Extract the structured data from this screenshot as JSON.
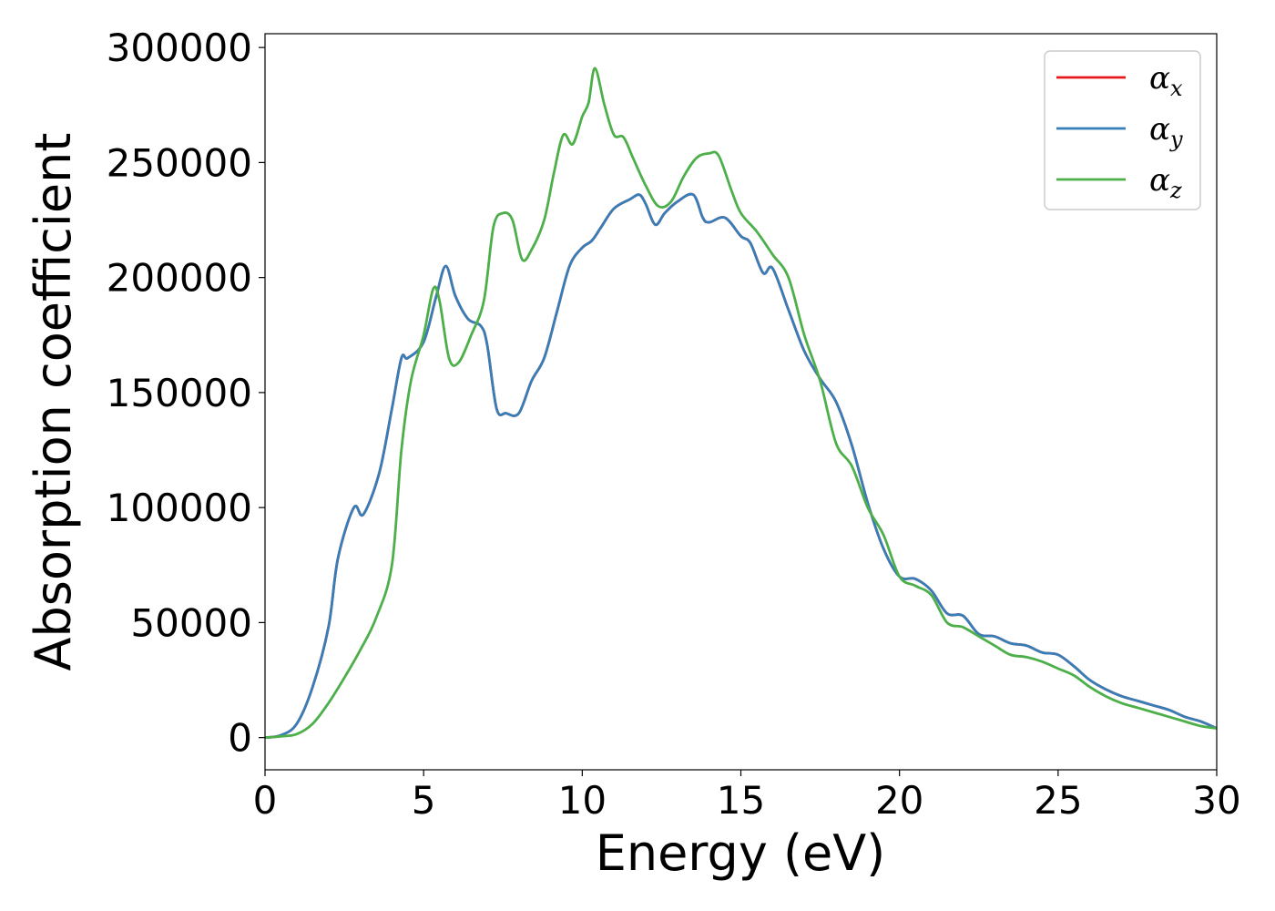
{
  "chart_data": {
    "type": "line",
    "title": "",
    "xlabel": "Energy (eV)",
    "ylabel": "Absorption coefficient",
    "xlim": [
      0,
      30
    ],
    "ylim": [
      -14000,
      306000
    ],
    "xticks": [
      0,
      5,
      10,
      15,
      20,
      25,
      30
    ],
    "yticks": [
      0,
      50000,
      100000,
      150000,
      200000,
      250000,
      300000
    ],
    "grid": false,
    "legend_position": "top-right",
    "series": [
      {
        "name": "α",
        "subscript": "x",
        "color": "#e41a1c",
        "x": [
          0,
          0.5,
          1.0,
          1.5,
          2.0,
          2.3,
          2.8,
          3.1,
          3.6,
          4.0,
          4.3,
          4.5,
          5.0,
          5.4,
          5.7,
          6.0,
          6.4,
          6.8,
          7.0,
          7.3,
          7.6,
          8.0,
          8.4,
          8.8,
          9.2,
          9.6,
          10.0,
          10.3,
          10.6,
          11.0,
          11.5,
          11.8,
          12.0,
          12.3,
          12.6,
          13.0,
          13.5,
          13.8,
          14.0,
          14.5,
          15.0,
          15.3,
          15.7,
          16.0,
          16.5,
          17.0,
          17.5,
          18.0,
          18.5,
          19.0,
          19.5,
          20.0,
          20.5,
          21.0,
          21.5,
          22.0,
          22.5,
          23.0,
          23.5,
          24.0,
          24.5,
          25.0,
          25.5,
          26.0,
          26.5,
          27.0,
          27.5,
          28.0,
          28.5,
          29.0,
          29.5,
          30.0
        ],
        "values": [
          0,
          1000,
          6000,
          22000,
          48000,
          78000,
          100000,
          97000,
          115000,
          143000,
          165000,
          165000,
          172000,
          192000,
          205000,
          192000,
          182000,
          179000,
          171000,
          143000,
          141000,
          141000,
          155000,
          165000,
          185000,
          205000,
          213000,
          216000,
          222000,
          230000,
          234000,
          236000,
          232000,
          223000,
          228000,
          233000,
          236000,
          226000,
          224000,
          226000,
          218000,
          215000,
          202000,
          204000,
          186000,
          168000,
          156000,
          146000,
          127000,
          102000,
          82000,
          70000,
          69000,
          64000,
          54000,
          53000,
          45000,
          44000,
          41000,
          40000,
          37000,
          36000,
          31000,
          25000,
          21000,
          18000,
          16000,
          14000,
          12000,
          9000,
          7000,
          4000
        ]
      },
      {
        "name": "α",
        "subscript": "y",
        "color": "#377eb8",
        "x": [
          0,
          0.5,
          1.0,
          1.5,
          2.0,
          2.3,
          2.8,
          3.1,
          3.6,
          4.0,
          4.3,
          4.5,
          5.0,
          5.4,
          5.7,
          6.0,
          6.4,
          6.8,
          7.0,
          7.3,
          7.6,
          8.0,
          8.4,
          8.8,
          9.2,
          9.6,
          10.0,
          10.3,
          10.6,
          11.0,
          11.5,
          11.8,
          12.0,
          12.3,
          12.6,
          13.0,
          13.5,
          13.8,
          14.0,
          14.5,
          15.0,
          15.3,
          15.7,
          16.0,
          16.5,
          17.0,
          17.5,
          18.0,
          18.5,
          19.0,
          19.5,
          20.0,
          20.5,
          21.0,
          21.5,
          22.0,
          22.5,
          23.0,
          23.5,
          24.0,
          24.5,
          25.0,
          25.5,
          26.0,
          26.5,
          27.0,
          27.5,
          28.0,
          28.5,
          29.0,
          29.5,
          30.0
        ],
        "values": [
          0,
          1000,
          6000,
          22000,
          48000,
          78000,
          100000,
          97000,
          115000,
          143000,
          165000,
          165000,
          172000,
          192000,
          205000,
          192000,
          182000,
          179000,
          171000,
          143000,
          141000,
          141000,
          155000,
          165000,
          185000,
          205000,
          213000,
          216000,
          222000,
          230000,
          234000,
          236000,
          232000,
          223000,
          228000,
          233000,
          236000,
          226000,
          224000,
          226000,
          218000,
          215000,
          202000,
          204000,
          186000,
          168000,
          156000,
          146000,
          127000,
          102000,
          82000,
          70000,
          69000,
          64000,
          54000,
          53000,
          45000,
          44000,
          41000,
          40000,
          37000,
          36000,
          31000,
          25000,
          21000,
          18000,
          16000,
          14000,
          12000,
          9000,
          7000,
          4000
        ]
      },
      {
        "name": "α",
        "subscript": "z",
        "color": "#4daf4a",
        "x": [
          0,
          0.5,
          1.0,
          1.5,
          2.0,
          2.5,
          3.0,
          3.5,
          4.0,
          4.3,
          4.6,
          5.0,
          5.3,
          5.5,
          5.8,
          6.1,
          6.5,
          6.9,
          7.2,
          7.5,
          7.8,
          8.1,
          8.4,
          8.8,
          9.1,
          9.4,
          9.7,
          10.0,
          10.2,
          10.4,
          10.7,
          11.0,
          11.3,
          11.6,
          12.0,
          12.4,
          12.8,
          13.2,
          13.6,
          14.0,
          14.3,
          14.7,
          15.0,
          15.5,
          16.0,
          16.5,
          17.0,
          17.5,
          18.0,
          18.5,
          19.0,
          19.5,
          20.0,
          20.5,
          21.0,
          21.5,
          22.0,
          22.5,
          23.0,
          23.5,
          24.0,
          24.5,
          25.0,
          25.5,
          26.0,
          26.5,
          27.0,
          27.5,
          28.0,
          28.5,
          29.0,
          29.5,
          30.0
        ],
        "values": [
          0,
          500,
          1500,
          6000,
          15000,
          26000,
          38000,
          52000,
          75000,
          125000,
          155000,
          175000,
          195000,
          190000,
          165000,
          163000,
          175000,
          190000,
          222000,
          228000,
          225000,
          208000,
          212000,
          225000,
          245000,
          262000,
          258000,
          270000,
          276000,
          291000,
          275000,
          262000,
          261000,
          252000,
          240000,
          231000,
          233000,
          244000,
          252000,
          254000,
          253000,
          238000,
          228000,
          220000,
          210000,
          200000,
          175000,
          155000,
          128000,
          118000,
          100000,
          88000,
          70000,
          66000,
          62000,
          50000,
          48000,
          44000,
          40000,
          36000,
          35000,
          33000,
          30000,
          27000,
          22000,
          18000,
          15000,
          13000,
          11000,
          9000,
          7000,
          5000,
          4000
        ]
      }
    ]
  }
}
